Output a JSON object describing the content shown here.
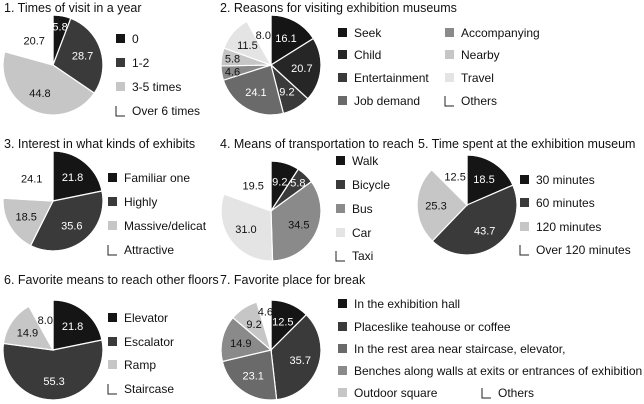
{
  "colors": {
    "black": "#151515",
    "dark": "#3a3a3a",
    "mid": "#8a8a8a",
    "light": "#c6c6c6",
    "white": "#ffffff",
    "pale": "#e4e4e4"
  },
  "chart_data": [
    {
      "type": "pie",
      "title": "1. Times of visit in a year",
      "labels": [
        "0",
        "1-2",
        "3-5 times",
        "Over 6 times"
      ],
      "values": [
        5.8,
        28.7,
        44.8,
        20.7
      ],
      "colors": [
        "#151515",
        "#3a3a3a",
        "#c6c6c6",
        "#ffffff"
      ]
    },
    {
      "type": "pie",
      "title": "2. Reasons for visiting exhibition museums",
      "labels": [
        "Seek",
        "Child",
        "Entertainment",
        "Job demand",
        "Accompanying",
        "Nearby",
        "Travel",
        "Others"
      ],
      "values": [
        16.1,
        20.7,
        9.2,
        24.1,
        4.6,
        5.8,
        11.5,
        8.0
      ],
      "colors": [
        "#151515",
        "#262626",
        "#3a3a3a",
        "#6a6a6a",
        "#8a8a8a",
        "#c6c6c6",
        "#e4e4e4",
        "#ffffff"
      ]
    },
    {
      "type": "pie",
      "title": "3. Interest in what kinds of exhibits",
      "labels": [
        "Familiar one",
        "Highly",
        "Massive/delicat",
        "Attractive"
      ],
      "values": [
        21.8,
        35.6,
        18.5,
        24.1
      ],
      "colors": [
        "#151515",
        "#3a3a3a",
        "#c6c6c6",
        "#ffffff"
      ]
    },
    {
      "type": "pie",
      "title": "4. Means of transportation to reach",
      "labels": [
        "Walk",
        "Bicycle",
        "Bus",
        "Car",
        "Taxi"
      ],
      "values": [
        9.2,
        5.8,
        34.5,
        31.0,
        19.5
      ],
      "colors": [
        "#151515",
        "#3a3a3a",
        "#8a8a8a",
        "#e4e4e4",
        "#ffffff"
      ]
    },
    {
      "type": "pie",
      "title": "5. Time spent at the exhibition museum",
      "labels": [
        "30 minutes",
        "60 minutes",
        "120 minutes",
        "Over 120 minutes"
      ],
      "values": [
        18.5,
        43.7,
        25.3,
        12.5
      ],
      "colors": [
        "#151515",
        "#3a3a3a",
        "#c6c6c6",
        "#ffffff"
      ]
    },
    {
      "type": "pie",
      "title": "6. Favorite means to reach other floors",
      "labels": [
        "Elevator",
        "Escalator",
        "Ramp",
        "Staircase"
      ],
      "values": [
        21.8,
        55.3,
        14.9,
        8.0
      ],
      "colors": [
        "#151515",
        "#3a3a3a",
        "#c6c6c6",
        "#ffffff"
      ]
    },
    {
      "type": "pie",
      "title": "7. Favorite place for break",
      "labels": [
        "In the exhibition hall",
        "Placeslike teahouse or coffee",
        "In the rest area near staircase, elevator,",
        "Benches along walls at exits or entrances of exhibition",
        "Outdoor square",
        "Others"
      ],
      "values": [
        12.5,
        35.7,
        23.1,
        14.9,
        9.2,
        4.6
      ],
      "colors": [
        "#151515",
        "#3a3a3a",
        "#6a6a6a",
        "#8a8a8a",
        "#c6c6c6",
        "#ffffff"
      ]
    }
  ]
}
